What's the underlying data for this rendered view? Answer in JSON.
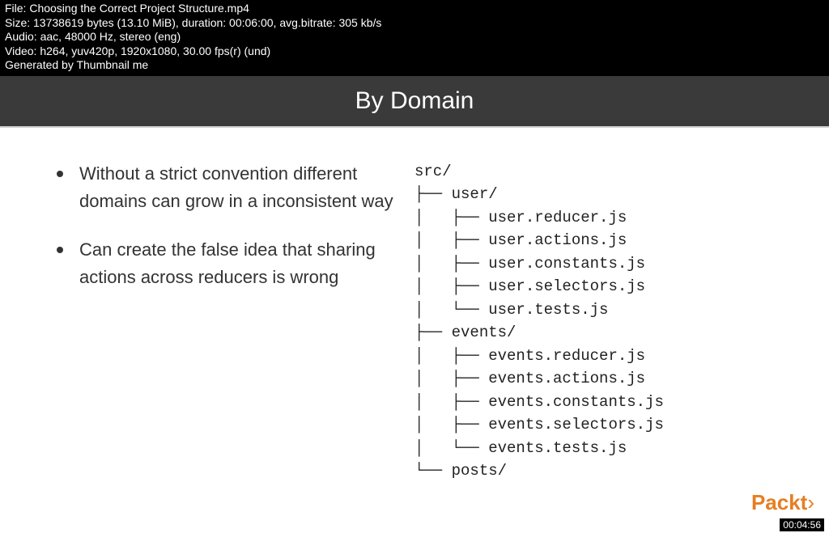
{
  "meta": {
    "file_line": "File: Choosing the Correct Project Structure.mp4",
    "size_line": "Size: 13738619 bytes (13.10 MiB), duration: 00:06:00, avg.bitrate: 305 kb/s",
    "audio_line": "Audio: aac, 48000 Hz, stereo (eng)",
    "video_line": "Video: h264, yuv420p, 1920x1080, 30.00 fps(r) (und)",
    "gen_line": "Generated by Thumbnail me"
  },
  "slide": {
    "title": "By Domain",
    "bullets": [
      "Without a strict convention different domains can grow in a inconsistent way",
      "Can create the false idea that sharing actions across reducers is wrong"
    ]
  },
  "tree": {
    "lines": [
      "src/",
      "├── user/",
      "│   ├── user.reducer.js",
      "│   ├── user.actions.js",
      "│   ├── user.constants.js",
      "│   ├── user.selectors.js",
      "│   └── user.tests.js",
      "├── events/",
      "│   ├── events.reducer.js",
      "│   ├── events.actions.js",
      "│   ├── events.constants.js",
      "│   ├── events.selectors.js",
      "│   └── events.tests.js",
      "└── posts/"
    ]
  },
  "brand": {
    "name": "Packt",
    "angle": "›"
  },
  "timestamp": "00:04:56",
  "colors": {
    "meta_bg": "#000000",
    "meta_fg": "#ffffff",
    "title_bg": "#3a3a3a",
    "title_fg": "#ffffff",
    "body_bg": "#ffffff",
    "text": "#333333",
    "brand": "#e67e22"
  }
}
